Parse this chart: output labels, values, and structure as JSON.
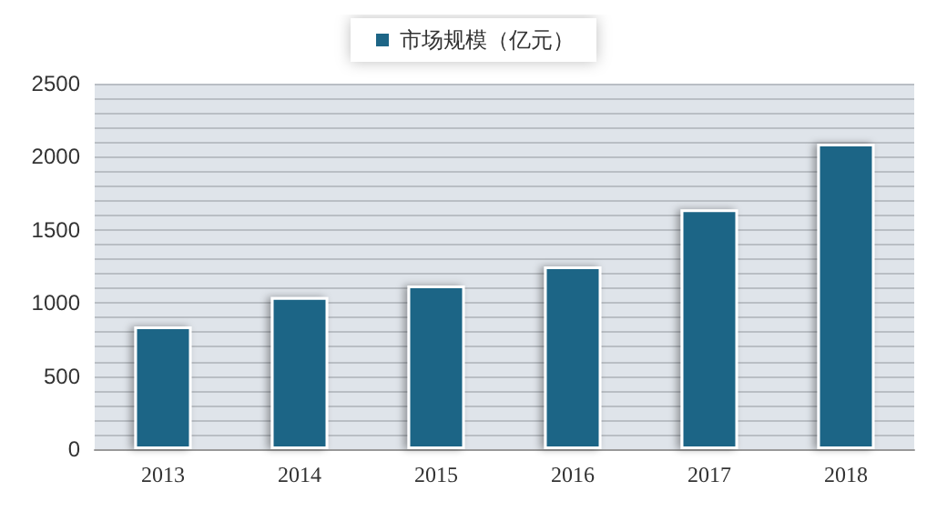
{
  "chart_data": {
    "type": "bar",
    "categories": [
      "2013",
      "2014",
      "2015",
      "2016",
      "2017",
      "2018"
    ],
    "series": [
      {
        "name": "市场规模（亿元）",
        "color": "#1d6586",
        "values": [
          840,
          1040,
          1120,
          1250,
          1640,
          2090
        ]
      }
    ],
    "ylim": [
      0,
      2500
    ],
    "yticks": [
      0,
      {
        "value": 100,
        "label": null
      },
      {
        "value": 200,
        "label": null
      },
      {
        "value": 300,
        "label": null
      },
      {
        "value": 400,
        "label": null
      },
      500,
      {
        "value": 600,
        "label": null
      },
      {
        "value": 700,
        "label": null
      },
      {
        "value": 800,
        "label": null
      },
      {
        "value": 900,
        "label": null
      },
      1000,
      {
        "value": 1100,
        "label": null
      },
      {
        "value": 1200,
        "label": null
      },
      {
        "value": 1300,
        "label": null
      },
      {
        "value": 1400,
        "label": null
      },
      1500,
      {
        "value": 1600,
        "label": null
      },
      {
        "value": 1700,
        "label": null
      },
      {
        "value": 1800,
        "label": null
      },
      {
        "value": 1900,
        "label": null
      },
      2000,
      {
        "value": 2100,
        "label": null
      },
      {
        "value": 2200,
        "label": null
      },
      {
        "value": 2300,
        "label": null
      },
      {
        "value": 2400,
        "label": null
      },
      2500
    ],
    "grid": true,
    "legend": "top"
  }
}
